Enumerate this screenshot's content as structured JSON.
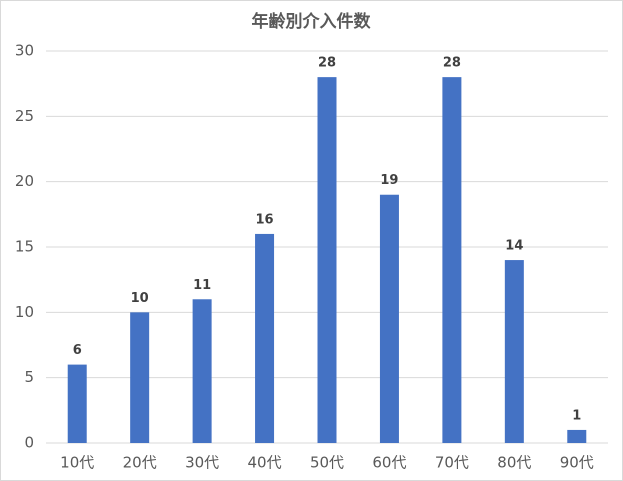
{
  "chart_data": {
    "type": "bar",
    "title": "年齢別介入件数",
    "categories": [
      "10代",
      "20代",
      "30代",
      "40代",
      "50代",
      "60代",
      "70代",
      "80代",
      "90代"
    ],
    "values": [
      6,
      10,
      11,
      16,
      28,
      19,
      28,
      14,
      1
    ],
    "color": "#4472c4",
    "ylim": [
      0,
      30
    ],
    "yticks": [
      0,
      5,
      10,
      15,
      20,
      25,
      30
    ],
    "grid": true,
    "data_labels": true
  }
}
